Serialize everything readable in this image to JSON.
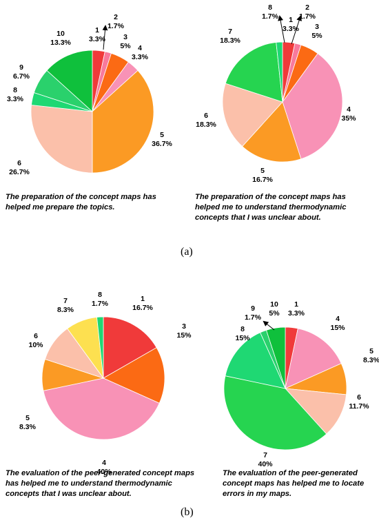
{
  "panel_labels": {
    "a": "(a)",
    "b": "(b)"
  },
  "colors": {
    "1": "#f03a3a",
    "2": "#f87a9c",
    "3": "#fb6a14",
    "4": "#f892b6",
    "5": "#fb9a24",
    "6": "#fbc0aa",
    "7": "#26d450",
    "8": "#1fd873",
    "9": "#2ad16c",
    "10": "#0fc03c",
    "7-yellow": "#fde050"
  },
  "chart_data": [
    {
      "type": "pie",
      "title": "",
      "caption": [
        "The preparation of the concept maps has",
        "helped me prepare the topics."
      ],
      "slices": [
        {
          "label": "1",
          "pct": "3.3%",
          "value": 3.3,
          "color": "#f03a3a"
        },
        {
          "label": "2",
          "pct": "1.7%",
          "value": 1.7,
          "color": "#f87a9c"
        },
        {
          "label": "3",
          "pct": "5%",
          "value": 5,
          "color": "#fb6a14"
        },
        {
          "label": "4",
          "pct": "3.3%",
          "value": 3.3,
          "color": "#f892b6"
        },
        {
          "label": "5",
          "pct": "36.7%",
          "value": 36.7,
          "color": "#fb9a24"
        },
        {
          "label": "6",
          "pct": "26.7%",
          "value": 26.7,
          "color": "#fbc0aa"
        },
        {
          "label": "8",
          "pct": "3.3%",
          "value": 3.3,
          "color": "#1fd873"
        },
        {
          "label": "9",
          "pct": "6.7%",
          "value": 6.7,
          "color": "#2ad16c"
        },
        {
          "label": "10",
          "pct": "13.3%",
          "value": 13.3,
          "color": "#0fc03c"
        }
      ]
    },
    {
      "type": "pie",
      "title": "",
      "caption": [
        "The preparation of the concept maps has",
        "helped me to understand thermodynamic",
        "concepts that I was unclear about."
      ],
      "slices": [
        {
          "label": "1",
          "pct": "3.3%",
          "value": 3.3,
          "color": "#f03a3a"
        },
        {
          "label": "2",
          "pct": "1.7%",
          "value": 1.7,
          "color": "#f87a9c"
        },
        {
          "label": "3",
          "pct": "5%",
          "value": 5,
          "color": "#fb6a14"
        },
        {
          "label": "4",
          "pct": "35%",
          "value": 35,
          "color": "#f892b6"
        },
        {
          "label": "5",
          "pct": "16.7%",
          "value": 16.7,
          "color": "#fb9a24"
        },
        {
          "label": "6",
          "pct": "18.3%",
          "value": 18.3,
          "color": "#fbc0aa"
        },
        {
          "label": "7",
          "pct": "18.3%",
          "value": 18.3,
          "color": "#26d450"
        },
        {
          "label": "8",
          "pct": "1.7%",
          "value": 1.7,
          "color": "#1fd873"
        }
      ]
    },
    {
      "type": "pie",
      "title": "",
      "caption": [
        "The evaluation of the peer-generated concept maps",
        "has helped me to understand thermodynamic",
        "concepts that I was unclear about."
      ],
      "slices": [
        {
          "label": "1",
          "pct": "16.7%",
          "value": 16.7,
          "color": "#f03a3a"
        },
        {
          "label": "3",
          "pct": "15%",
          "value": 15,
          "color": "#fb6a14"
        },
        {
          "label": "4",
          "pct": "40%",
          "value": 40,
          "color": "#f892b6"
        },
        {
          "label": "5",
          "pct": "8.3%",
          "value": 8.3,
          "color": "#fb9a24"
        },
        {
          "label": "6",
          "pct": "10%",
          "value": 10,
          "color": "#fbc0aa"
        },
        {
          "label": "7",
          "pct": "8.3%",
          "value": 8.3,
          "color": "#fde050"
        },
        {
          "label": "8",
          "pct": "1.7%",
          "value": 1.7,
          "color": "#1fd873"
        }
      ]
    },
    {
      "type": "pie",
      "title": "",
      "caption": [
        "The evaluation of the peer-generated",
        "concept maps has helped me to locate",
        "errors in my maps."
      ],
      "slices": [
        {
          "label": "1",
          "pct": "3.3%",
          "value": 3.3,
          "color": "#f03a3a"
        },
        {
          "label": "4",
          "pct": "15%",
          "value": 15,
          "color": "#f892b6"
        },
        {
          "label": "5",
          "pct": "8.3%",
          "value": 8.3,
          "color": "#fb9a24"
        },
        {
          "label": "6",
          "pct": "11.7%",
          "value": 11.7,
          "color": "#fbc0aa"
        },
        {
          "label": "7",
          "pct": "40%",
          "value": 40,
          "color": "#26d450"
        },
        {
          "label": "8",
          "pct": "15%",
          "value": 15,
          "color": "#1fd873"
        },
        {
          "label": "9",
          "pct": "1.7%",
          "value": 1.7,
          "color": "#2ad16c"
        },
        {
          "label": "10",
          "pct": "5%",
          "value": 5,
          "color": "#0fc03c"
        }
      ]
    }
  ]
}
